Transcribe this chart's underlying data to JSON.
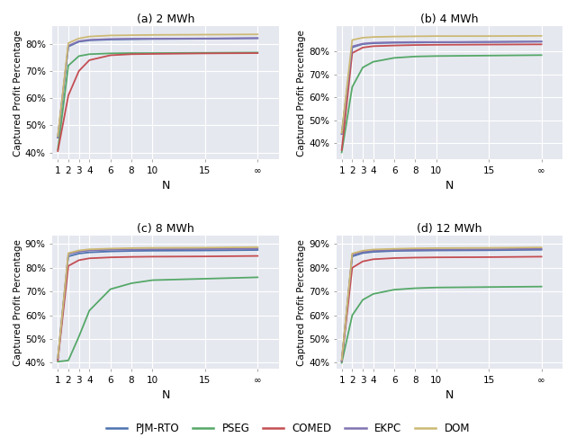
{
  "titles": [
    "(a) 2 MWh",
    "(b) 4 MWh",
    "(c) 8 MWh",
    "(d) 12 MWh"
  ],
  "x_tick_values": [
    1,
    2,
    3,
    4,
    6,
    8,
    10,
    15,
    20
  ],
  "x_tick_labels": [
    "1",
    "2",
    "3",
    "4",
    "6",
    "8",
    "10",
    "15",
    "∞"
  ],
  "xlabel": "N",
  "ylabel": "Captured Profit Percentage",
  "colors": {
    "PJM-RTO": "#4C72B0",
    "PSEG": "#55A868",
    "COMED": "#C44E52",
    "EKPC": "#8172B2",
    "DOM": "#CCB974"
  },
  "legend_labels": [
    "PJM-RTO",
    "PSEG",
    "COMED",
    "EKPC",
    "DOM"
  ],
  "background_color": "#E6E8F0",
  "grid_color": "#FFFFFF",
  "panels": {
    "a": {
      "ylim": [
        0.375,
        0.865
      ],
      "yticks": [
        0.4,
        0.5,
        0.6,
        0.7,
        0.8
      ],
      "data": {
        "PJM-RTO": [
          0.455,
          0.79,
          0.808,
          0.813,
          0.816,
          0.817,
          0.818,
          0.819,
          0.821
        ],
        "PSEG": [
          0.41,
          0.72,
          0.755,
          0.762,
          0.765,
          0.766,
          0.766,
          0.767,
          0.768
        ],
        "COMED": [
          0.405,
          0.61,
          0.7,
          0.74,
          0.758,
          0.762,
          0.763,
          0.765,
          0.766
        ],
        "EKPC": [
          0.455,
          0.793,
          0.81,
          0.815,
          0.818,
          0.819,
          0.819,
          0.82,
          0.821
        ],
        "DOM": [
          0.46,
          0.803,
          0.82,
          0.827,
          0.831,
          0.832,
          0.833,
          0.834,
          0.835
        ]
      }
    },
    "b": {
      "ylim": [
        0.33,
        0.91
      ],
      "yticks": [
        0.4,
        0.5,
        0.6,
        0.7,
        0.8
      ],
      "data": {
        "PJM-RTO": [
          0.44,
          0.818,
          0.832,
          0.836,
          0.838,
          0.839,
          0.84,
          0.841,
          0.843
        ],
        "PSEG": [
          0.36,
          0.645,
          0.73,
          0.755,
          0.772,
          0.778,
          0.78,
          0.782,
          0.784
        ],
        "COMED": [
          0.37,
          0.793,
          0.817,
          0.823,
          0.826,
          0.828,
          0.829,
          0.83,
          0.831
        ],
        "EKPC": [
          0.44,
          0.822,
          0.834,
          0.838,
          0.84,
          0.841,
          0.841,
          0.842,
          0.843
        ],
        "DOM": [
          0.445,
          0.85,
          0.86,
          0.863,
          0.865,
          0.866,
          0.867,
          0.867,
          0.868
        ]
      }
    },
    "c": {
      "ylim": [
        0.375,
        0.935
      ],
      "yticks": [
        0.4,
        0.5,
        0.6,
        0.7,
        0.8,
        0.9
      ],
      "data": {
        "PJM-RTO": [
          0.415,
          0.848,
          0.86,
          0.865,
          0.869,
          0.871,
          0.872,
          0.873,
          0.875
        ],
        "PSEG": [
          0.405,
          0.41,
          0.51,
          0.62,
          0.71,
          0.735,
          0.748,
          0.754,
          0.76
        ],
        "COMED": [
          0.41,
          0.808,
          0.832,
          0.84,
          0.844,
          0.846,
          0.847,
          0.848,
          0.85
        ],
        "EKPC": [
          0.418,
          0.858,
          0.868,
          0.873,
          0.876,
          0.877,
          0.878,
          0.879,
          0.881
        ],
        "DOM": [
          0.42,
          0.862,
          0.873,
          0.878,
          0.881,
          0.883,
          0.884,
          0.885,
          0.887
        ]
      }
    },
    "d": {
      "ylim": [
        0.375,
        0.935
      ],
      "yticks": [
        0.4,
        0.5,
        0.6,
        0.7,
        0.8,
        0.9
      ],
      "data": {
        "PJM-RTO": [
          0.405,
          0.848,
          0.862,
          0.867,
          0.871,
          0.872,
          0.873,
          0.874,
          0.876
        ],
        "PSEG": [
          0.4,
          0.6,
          0.665,
          0.69,
          0.708,
          0.714,
          0.717,
          0.719,
          0.721
        ],
        "COMED": [
          0.408,
          0.8,
          0.827,
          0.836,
          0.841,
          0.843,
          0.844,
          0.845,
          0.847
        ],
        "EKPC": [
          0.408,
          0.855,
          0.867,
          0.872,
          0.875,
          0.876,
          0.877,
          0.878,
          0.88
        ],
        "DOM": [
          0.412,
          0.86,
          0.872,
          0.877,
          0.88,
          0.882,
          0.883,
          0.884,
          0.886
        ]
      }
    }
  }
}
